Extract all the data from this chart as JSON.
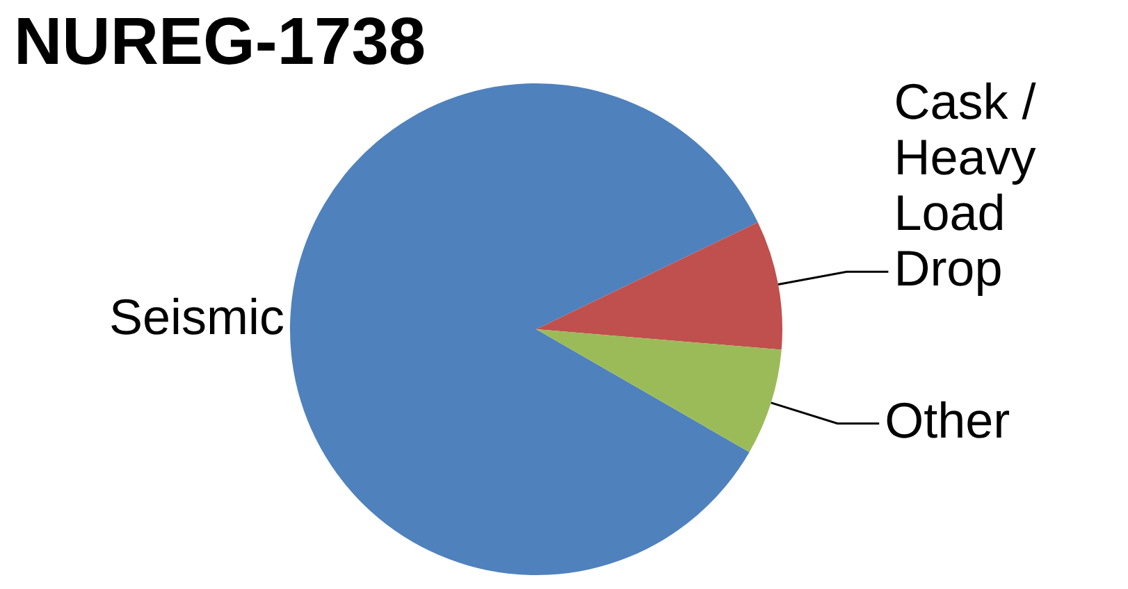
{
  "chart_data": {
    "type": "pie",
    "title": "NUREG-1738",
    "categories": [
      "Seismic",
      "Cask / Heavy Load Drop",
      "Other"
    ],
    "values": [
      84.5,
      8.5,
      7
    ],
    "colors": [
      "#4f81bd",
      "#c0504d",
      "#9bbb59"
    ]
  }
}
